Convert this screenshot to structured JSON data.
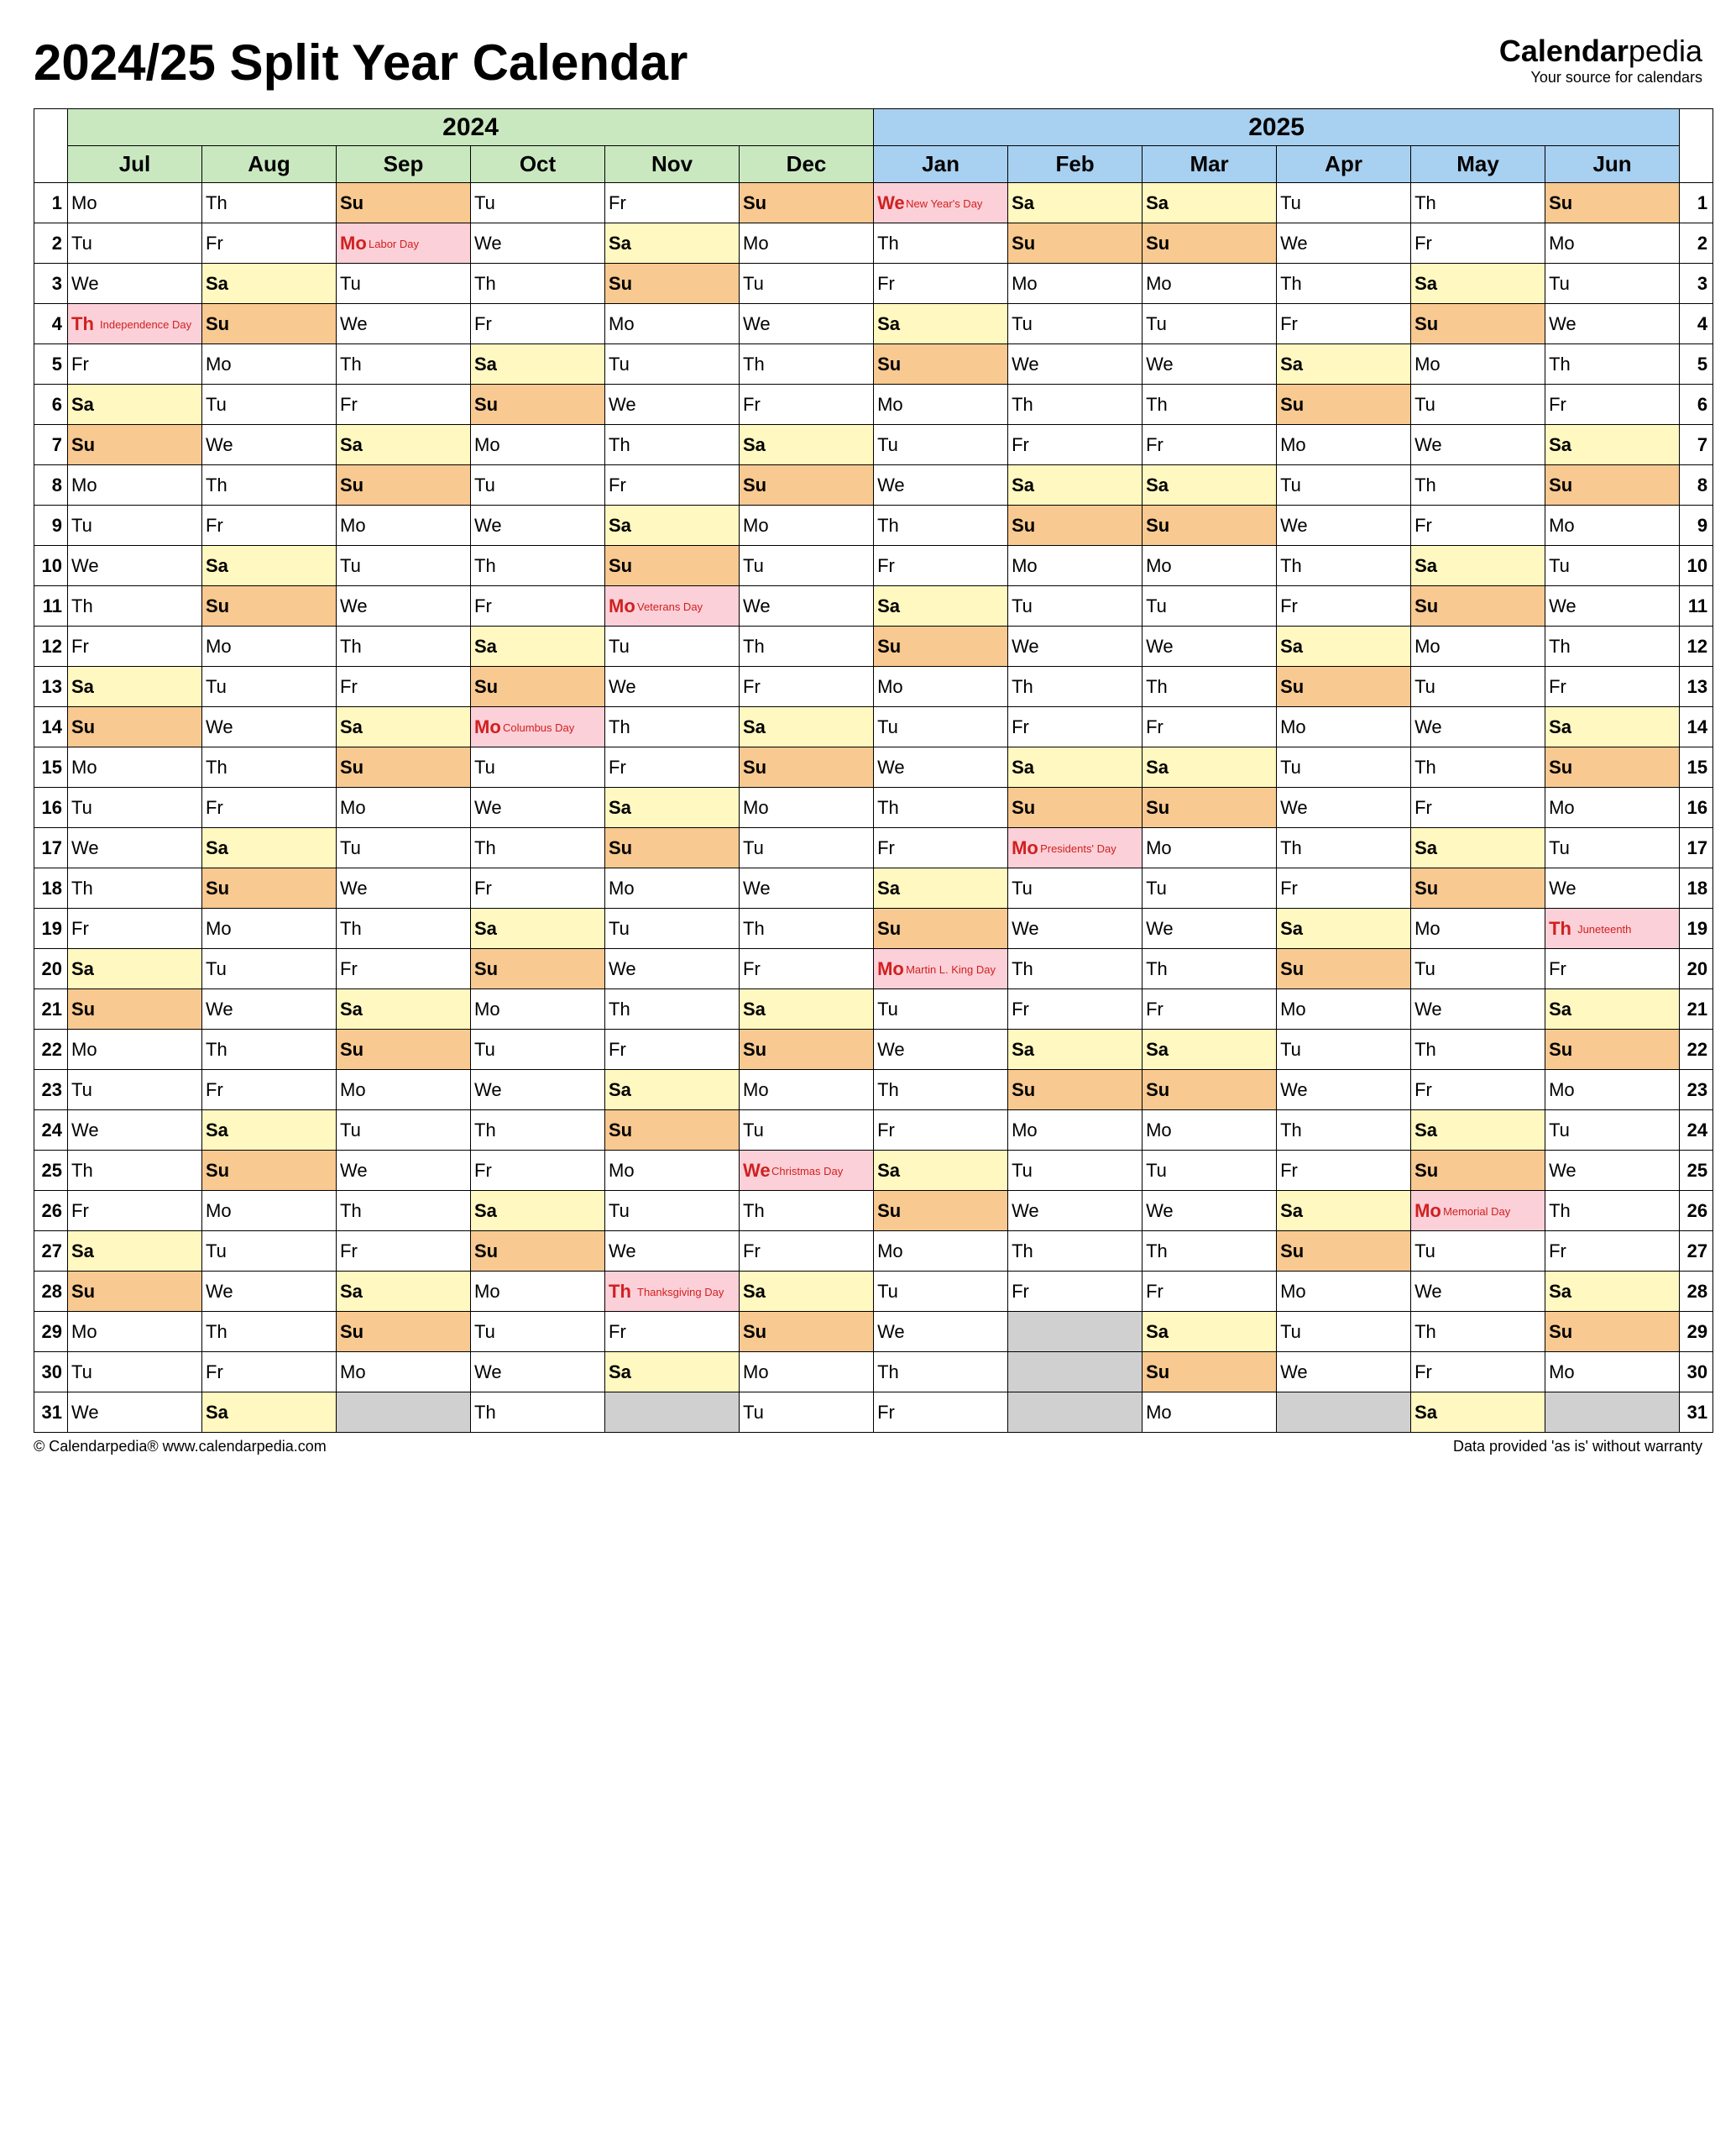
{
  "title": "2024/25 Split Year Calendar",
  "brand": {
    "main": "Calendar",
    "suffix": "pedia",
    "tag": "Your source for calendars"
  },
  "years": [
    "2024",
    "2025"
  ],
  "months": [
    "Jul",
    "Aug",
    "Sep",
    "Oct",
    "Nov",
    "Dec",
    "Jan",
    "Feb",
    "Mar",
    "Apr",
    "May",
    "Jun"
  ],
  "colors": {
    "year2024_bg": "#c9e8c0",
    "year2025_bg": "#a8d0f0",
    "saturday_bg": "#fff8c0",
    "sunday_bg": "#f8c990",
    "holiday_bg": "#fcd0d8",
    "blank_bg": "#d0d0d0",
    "holiday_text": "#d02020",
    "border": "#000000"
  },
  "fonts": {
    "title_size": 60,
    "year_header_size": 30,
    "month_header_size": 26,
    "cell_size": 22,
    "holiday_name_size": 13
  },
  "startDow": [
    0,
    3,
    6,
    1,
    4,
    6,
    2,
    5,
    5,
    1,
    3,
    6
  ],
  "daysInMonth": [
    31,
    31,
    30,
    31,
    30,
    31,
    31,
    28,
    31,
    30,
    31,
    30
  ],
  "dowNames": [
    "Mo",
    "Tu",
    "We",
    "Th",
    "Fr",
    "Sa",
    "Su"
  ],
  "holidays": {
    "0": {
      "4": "Independence Day"
    },
    "2": {
      "2": "Labor Day"
    },
    "3": {
      "14": "Columbus Day"
    },
    "4": {
      "11": "Veterans Day",
      "28": "Thanksgiving Day"
    },
    "5": {
      "25": "Christmas Day"
    },
    "6": {
      "1": "New Year's Day",
      "20": "Martin L. King Day"
    },
    "7": {
      "17": "Presidents' Day"
    },
    "10": {
      "26": "Memorial Day"
    },
    "11": {
      "19": "Juneteenth"
    }
  },
  "footer": {
    "left": "© Calendarpedia®   www.calendarpedia.com",
    "right": "Data provided 'as is' without warranty"
  }
}
